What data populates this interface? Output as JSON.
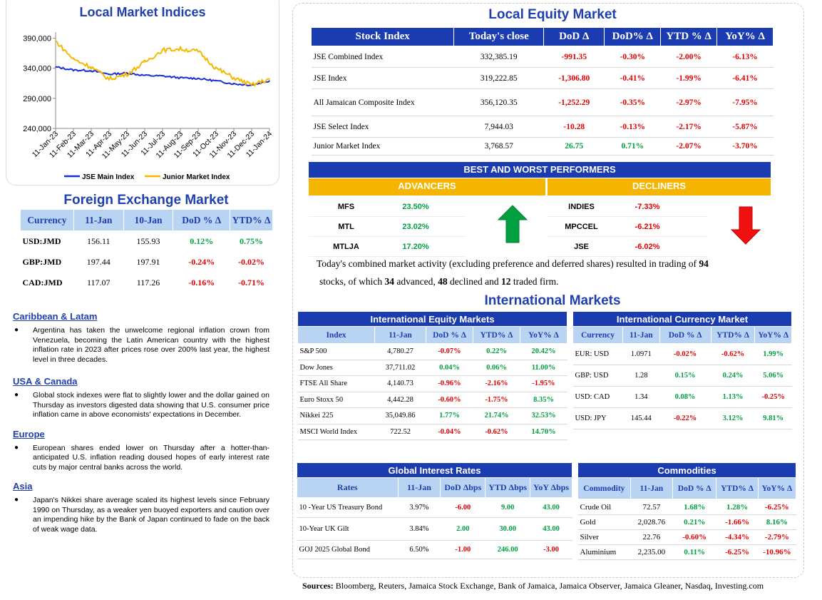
{
  "lmi": {
    "title": "Local Market Indices",
    "yticks": [
      "390,000",
      "340,000",
      "290,000",
      "240,000"
    ],
    "xticks": [
      "11-Jan-23",
      "11-Feb-23",
      "11-Mar-23",
      "11-Apr-23",
      "11-May-23",
      "11-Jun-23",
      "11-Jul-23",
      "11-Aug-23",
      "11-Sep-23",
      "11-Oct-23",
      "11-Nov-23",
      "11-Dec-23",
      "11-Jan-24"
    ],
    "legend": [
      "JSE Main Index",
      "Junior Market Index"
    ],
    "colors": {
      "main": "#1a2fd6",
      "junior": "#f5b800"
    }
  },
  "chart_data": {
    "type": "line",
    "title": "Local Market Indices",
    "ylim": [
      240000,
      400000
    ],
    "categories": [
      "11-Jan-23",
      "11-Feb-23",
      "11-Mar-23",
      "11-Apr-23",
      "11-May-23",
      "11-Jun-23",
      "11-Jul-23",
      "11-Aug-23",
      "11-Sep-23",
      "11-Oct-23",
      "11-Nov-23",
      "11-Dec-23",
      "11-Jan-24"
    ],
    "series": [
      {
        "name": "JSE Main Index",
        "values": [
          342000,
          337000,
          336000,
          330000,
          332000,
          328000,
          327000,
          324000,
          323000,
          319000,
          314000,
          312000,
          319000
        ]
      },
      {
        "name": "Junior Market Index",
        "values": [
          385000,
          355000,
          342000,
          322000,
          330000,
          350000,
          370000,
          372000,
          368000,
          340000,
          324000,
          312000,
          322000
        ]
      }
    ]
  },
  "fx": {
    "title": "Foreign Exchange Market",
    "headers": [
      "Currency",
      "11-Jan",
      "10-Jan",
      "DoD % Δ",
      "YTD% Δ"
    ],
    "rows": [
      [
        "USD:JMD",
        "156.11",
        "155.93",
        "0.12%",
        "0.75%"
      ],
      [
        "GBP:JMD",
        "197.44",
        "197.91",
        "-0.24%",
        "-0.02%"
      ],
      [
        "CAD:JMD",
        "117.07",
        "117.26",
        "-0.16%",
        "-0.71%"
      ]
    ]
  },
  "news": [
    {
      "head": "Caribbean & Latam",
      "text": "Argentina has taken the unwelcome regional inflation crown from Venezuela, becoming the Latin American country with the highest inflation rate in 2023 after prices rose over 200% last year, the highest level in three decades."
    },
    {
      "head": "USA & Canada",
      "text": "Global stock indexes were flat to slightly lower and the dollar gained on Thursday as investors digested data showing that U.S. consumer price inflation came in above economists' expectations in December."
    },
    {
      "head": "Europe",
      "text": "European shares ended lower on Thursday after a hotter-than-anticipated U.S. inflation reading doused hopes of early interest rate cuts by major central banks across the world."
    },
    {
      "head": "Asia",
      "text": "Japan's Nikkei share average scaled its highest levels since February 1990 on Thursday, as a weaker yen buoyed exporters and caution over an impending hike by the Bank of Japan continued to fade on the back of weak wage data."
    }
  ],
  "lem": {
    "title": "Local Equity Market",
    "headers": [
      "Stock Index",
      "Today's close",
      "DoD  Δ",
      "DoD% Δ",
      "YTD % Δ",
      "YoY% Δ"
    ],
    "rows": [
      [
        "JSE Combined Index",
        "332,385.19",
        "-991.35",
        "-0.30%",
        "-2.00%",
        "-6.13%"
      ],
      [
        "JSE Index",
        "319,222.85",
        "-1,306.80",
        "-0.41%",
        "-1.99%",
        "-6.41%"
      ],
      [
        "All Jamaican Composite Index",
        "356,120.35",
        "-1,252.29",
        "-0.35%",
        "-2.97%",
        "-7.95%"
      ],
      [
        "JSE Select Index",
        "7,944.03",
        "-10.28",
        "-0.13%",
        "-2.17%",
        "-5.87%"
      ],
      [
        "Junior Market Index",
        "3,768.57",
        "26.75",
        "0.71%",
        "-2.07%",
        "-3.70%"
      ]
    ]
  },
  "bwp": {
    "title": "BEST AND WORST PERFORMERS",
    "adv_label": "ADVANCERS",
    "dec_label": "DECLINERS",
    "advancers": [
      [
        "MFS",
        "23.50%"
      ],
      [
        "MTL",
        "23.02%"
      ],
      [
        "MTLJA",
        "17.20%"
      ]
    ],
    "decliners": [
      [
        "INDIES",
        "-7.33%"
      ],
      [
        "MPCCEL",
        "-6.21%"
      ],
      [
        "JSE",
        "-6.02%"
      ]
    ]
  },
  "summary": {
    "t1": "Today's combined market activity (excluding preference and deferred shares) resulted in trading of ",
    "n1": "94",
    "t2": "stocks, of which ",
    "n2": "34",
    "t3": " advanced, ",
    "n3": "48",
    "t4": " declined and ",
    "n4": "12",
    "t5": " traded firm."
  },
  "intl": {
    "title": "International Markets",
    "eq_title": "International Equity Markets",
    "eq_headers": [
      "Index",
      "11-Jan",
      "DoD % Δ",
      "YTD% Δ",
      "YoY% Δ"
    ],
    "eq_rows": [
      [
        "S&P 500",
        "4,780.27",
        "-0.07%",
        "0.22%",
        "20.42%"
      ],
      [
        "Dow Jones",
        "37,711.02",
        "0.04%",
        "0.06%",
        "11.00%"
      ],
      [
        "FTSE All Share",
        "4,140.73",
        "-0.96%",
        "-2.16%",
        "-1.95%"
      ],
      [
        "Euro Stoxx 50",
        "4,442.28",
        "-0.60%",
        "-1.75%",
        "8.35%"
      ],
      [
        "Nikkei 225",
        "35,049.86",
        "1.77%",
        "21.74%",
        "32.53%"
      ],
      [
        "MSCI World Index",
        "722.52",
        "-0.04%",
        "-0.62%",
        "14.70%"
      ]
    ],
    "cur_title": "International Currency Market",
    "cur_headers": [
      "Currency",
      "11-Jan",
      "DoD % Δ",
      "YTD% Δ",
      "YoY% Δ"
    ],
    "cur_rows": [
      [
        "EUR: USD",
        "1.0971",
        "-0.02%",
        "-0.62%",
        "1.99%"
      ],
      [
        "GBP: USD",
        "1.28",
        "0.15%",
        "0.24%",
        "5.06%"
      ],
      [
        "USD: CAD",
        "1.34",
        "0.08%",
        "1.13%",
        "-0.25%"
      ],
      [
        "USD: JPY",
        "145.44",
        "-0.22%",
        "3.12%",
        "9.81%"
      ]
    ],
    "rates_title": "Global Interest Rates",
    "rates_headers": [
      "Rates",
      "11-Jan",
      "DoD Δbps",
      "YTD Δbps",
      "YoY Δbps"
    ],
    "rates_rows": [
      [
        "10 -Year US Treasury Bond",
        "3.97%",
        "-6.00",
        "9.00",
        "43.00"
      ],
      [
        "10-Year UK Gilt",
        "3.84%",
        "2.00",
        "30.00",
        "43.00"
      ],
      [
        "GOJ 2025 Global Bond",
        "6.50%",
        "-1.00",
        "246.00",
        "-3.00"
      ]
    ],
    "com_title": "Commodities",
    "com_headers": [
      "Commodity",
      "11-Jan",
      "DoD % Δ",
      "YTD% Δ",
      "YoY% Δ"
    ],
    "com_rows": [
      [
        "Crude Oil",
        "72.57",
        "1.68%",
        "1.28%",
        "-6.25%"
      ],
      [
        "Gold",
        "2,028.76",
        "0.21%",
        "-1.66%",
        "8.16%"
      ],
      [
        "Silver",
        "22.76",
        "-0.60%",
        "-4.34%",
        "-2.79%"
      ],
      [
        "Aluminium",
        "2,235.00",
        "0.11%",
        "-6.25%",
        "-10.96%"
      ]
    ]
  },
  "sources": {
    "label": "Sources:",
    "text": " Bloomberg, Reuters, Jamaica Stock Exchange, Bank of Jamaica, Jamaica Observer, Jamaica Gleaner, Nasdaq, Investing.com"
  }
}
